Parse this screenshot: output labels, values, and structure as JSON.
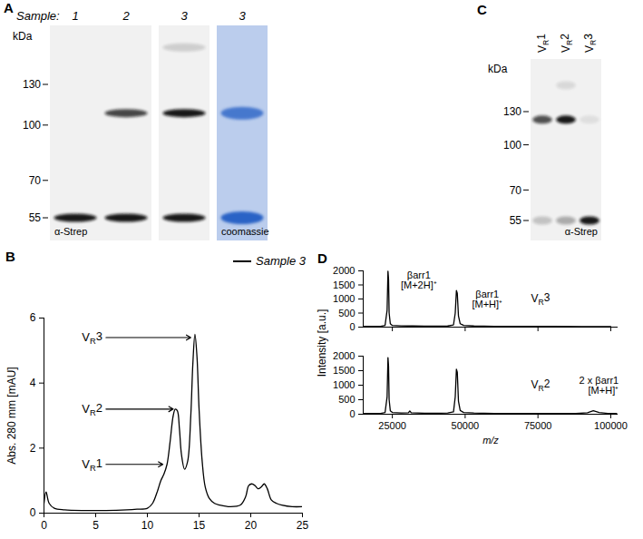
{
  "blots": [
    {
      "panel": "A",
      "header": "Sample:",
      "unit": "kDa",
      "markers": [
        130,
        100,
        70,
        55
      ],
      "images": [
        {
          "label": "α-Strep",
          "color": "#111111",
          "lanes": [
            {
              "label": "1",
              "bands": [
                {
                  "kda": 55,
                  "intensity": 0.95
                }
              ]
            },
            {
              "label": "2",
              "bands": [
                {
                  "kda": 108,
                  "intensity": 0.75
                },
                {
                  "kda": 55,
                  "intensity": 0.95
                }
              ]
            }
          ]
        },
        {
          "color": "#111111",
          "lanes": [
            {
              "label": "3",
              "bands": [
                {
                  "kda": 165,
                  "intensity": 0.15
                },
                {
                  "kda": 108,
                  "intensity": 0.95
                },
                {
                  "kda": 55,
                  "intensity": 0.95
                }
              ]
            }
          ]
        },
        {
          "label": "coomassie",
          "color": "#2a63c6",
          "lanes": [
            {
              "label": "3",
              "bands": [
                {
                  "kda": 108,
                  "intensity": 0.8
                },
                {
                  "kda": 55,
                  "intensity": 1
                }
              ]
            }
          ]
        }
      ]
    },
    {
      "panel": "C",
      "unit": "kDa",
      "markers": [
        130,
        100,
        70,
        55
      ],
      "images": [
        {
          "label": "α-Strep",
          "color": "#111111",
          "lanes": [
            {
              "label": "VR1",
              "bands": [
                {
                  "kda": 122,
                  "intensity": 0.7
                },
                {
                  "kda": 55,
                  "intensity": 0.2
                }
              ]
            },
            {
              "label": "VR2",
              "bands": [
                {
                  "kda": 160,
                  "intensity": 0.1
                },
                {
                  "kda": 122,
                  "intensity": 0.95
                },
                {
                  "kda": 55,
                  "intensity": 0.3
                }
              ]
            },
            {
              "label": "VR3",
              "bands": [
                {
                  "kda": 122,
                  "intensity": 0.08
                },
                {
                  "kda": 55,
                  "intensity": 0.95
                }
              ]
            }
          ]
        }
      ]
    }
  ],
  "chart_data": [
    {
      "title": "B",
      "type": "line",
      "x": [
        0,
        0.2,
        0.5,
        1,
        2,
        4,
        6,
        8,
        9,
        10,
        10.5,
        11,
        11.3,
        11.6,
        11.9,
        12.2,
        12.5,
        12.7,
        12.9,
        13.1,
        13.3,
        13.6,
        13.9,
        14.2,
        14.4,
        14.6,
        14.8,
        15.0,
        15.3,
        15.6,
        16,
        16.5,
        17,
        18,
        19,
        19.5,
        19.8,
        20.1,
        20.4,
        20.7,
        21,
        21.3,
        21.6,
        22,
        22.5,
        23,
        24,
        25
      ],
      "series": [
        {
          "name": "Sample 3",
          "color": "#000000",
          "values": [
            0.3,
            0.65,
            0.3,
            0.15,
            0.1,
            0.08,
            0.08,
            0.1,
            0.12,
            0.15,
            0.3,
            0.7,
            1.0,
            1.2,
            1.5,
            2.2,
            3.0,
            3.2,
            3.15,
            2.6,
            1.8,
            1.35,
            1.6,
            3.0,
            4.6,
            5.5,
            4.8,
            3.2,
            1.6,
            0.8,
            0.45,
            0.3,
            0.25,
            0.2,
            0.25,
            0.5,
            0.85,
            0.9,
            0.85,
            0.75,
            0.8,
            0.9,
            0.75,
            0.4,
            0.3,
            0.25,
            0.2,
            0.2
          ]
        }
      ],
      "xlim": [
        0,
        25
      ],
      "xticks": [
        0,
        5,
        10,
        15,
        20,
        25
      ],
      "ylim": [
        0,
        6
      ],
      "yticks": [
        0,
        2,
        4,
        6
      ],
      "y_label": "Abs. 280 mm [mAU]",
      "legend": "top-right",
      "annotations": [
        {
          "text": "VR1",
          "x": 11.5,
          "y": 1.5
        },
        {
          "text": "VR2",
          "x": 12.5,
          "y": 3.2
        },
        {
          "text": "VR3",
          "x": 14.2,
          "y": 5.4
        }
      ]
    },
    {
      "title": "D",
      "subtitle": "VR3",
      "type": "line",
      "x": [
        15000,
        18000,
        21000,
        22500,
        23200,
        23500,
        23700,
        23900,
        24300,
        25000,
        28000,
        32000,
        36000,
        40000,
        44000,
        46000,
        46600,
        47000,
        47300,
        47700,
        48300,
        49500,
        53000,
        60000,
        70000,
        80000,
        90000,
        100000
      ],
      "series": [
        {
          "color": "#000000",
          "values": [
            30,
            25,
            30,
            60,
            600,
            1990,
            1700,
            500,
            120,
            60,
            45,
            40,
            35,
            35,
            40,
            80,
            500,
            1300,
            1200,
            400,
            120,
            60,
            40,
            30,
            25,
            25,
            20,
            20
          ]
        }
      ],
      "xlim": [
        15000,
        102500
      ],
      "xticks": [
        25000,
        50000,
        75000,
        100000
      ],
      "ylim": [
        0,
        2000
      ],
      "yticks": [
        0,
        500,
        1000,
        1500,
        2000
      ],
      "y_label": "Intensity [a.u.]",
      "tick_labels": "y",
      "annotations": [
        {
          "text": "βarr1\n[M+2H]⁺",
          "x": 23500,
          "y": 1990
        },
        {
          "text": "βarr1\n[M+H]⁺",
          "x": 47000,
          "y": 1300
        }
      ]
    },
    {
      "subtitle": "VR2",
      "type": "line",
      "x": [
        15000,
        18000,
        21000,
        22500,
        23200,
        23500,
        23700,
        23900,
        24300,
        25000,
        28000,
        30500,
        31000,
        31500,
        36000,
        40000,
        44000,
        46000,
        46600,
        47000,
        47300,
        47700,
        48300,
        49500,
        53000,
        60000,
        70000,
        80000,
        88000,
        92000,
        94000,
        96000,
        99000,
        102000
      ],
      "series": [
        {
          "color": "#000000",
          "values": [
            30,
            25,
            30,
            60,
            600,
            1950,
            1650,
            500,
            120,
            60,
            45,
            50,
            110,
            50,
            35,
            35,
            40,
            80,
            600,
            1550,
            1450,
            450,
            130,
            60,
            40,
            30,
            25,
            25,
            25,
            50,
            120,
            60,
            30,
            25
          ]
        }
      ],
      "xlim": [
        15000,
        102500
      ],
      "xticks": [
        25000,
        50000,
        75000,
        100000
      ],
      "ylim": [
        0,
        2000
      ],
      "yticks": [
        0,
        500,
        1000,
        1500,
        2000
      ],
      "x_label": "m/z",
      "annotations": [
        {
          "text": "2 x βarr1\n[M+H]⁺",
          "x": 94000,
          "y": 120
        }
      ]
    }
  ]
}
